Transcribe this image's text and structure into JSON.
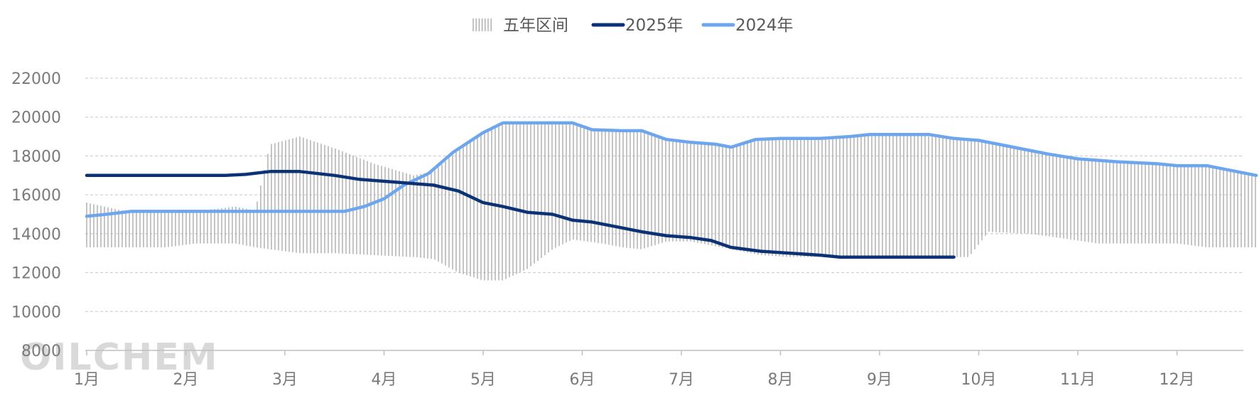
{
  "chart_data": {
    "type": "line",
    "title": "",
    "xlabel": "",
    "ylabel": "",
    "ylim": [
      8000,
      22000
    ],
    "yticks": [
      8000,
      10000,
      12000,
      14000,
      16000,
      18000,
      20000,
      22000
    ],
    "xlim": [
      1,
      12.8
    ],
    "x_categories": [
      "1月",
      "2月",
      "3月",
      "4月",
      "5月",
      "6月",
      "7月",
      "8月",
      "9月",
      "10月",
      "11月",
      "12月"
    ],
    "grid": "horizontal-dashed",
    "legend_position": "top-center",
    "watermark": "OILCHEM",
    "band": {
      "name": "五年区间",
      "color": "#a6a6a6",
      "x": [
        1.0,
        1.4,
        1.8,
        2.1,
        2.5,
        2.7,
        2.85,
        3.15,
        3.5,
        3.9,
        4.3,
        4.5,
        4.75,
        5.0,
        5.2,
        5.45,
        5.7,
        5.9,
        6.2,
        6.4,
        6.6,
        6.85,
        7.1,
        7.5,
        7.8,
        8.1,
        8.4,
        8.8,
        9.3,
        9.7,
        9.9,
        10.1,
        10.5,
        10.8,
        11.2,
        11.6,
        12.0,
        12.3,
        12.6,
        12.8
      ],
      "high": [
        15600,
        15150,
        15150,
        15150,
        15400,
        15200,
        18600,
        19000,
        18400,
        17600,
        17000,
        17200,
        18300,
        19300,
        19700,
        19700,
        19700,
        19700,
        19300,
        19300,
        19300,
        18800,
        18650,
        18500,
        18850,
        18900,
        18900,
        19100,
        19100,
        18900,
        18800,
        18700,
        18300,
        18000,
        17700,
        17600,
        17500,
        17450,
        17200,
        17000
      ],
      "low": [
        13300,
        13300,
        13300,
        13500,
        13500,
        13300,
        13200,
        13000,
        13000,
        12900,
        12800,
        12700,
        12000,
        11600,
        11600,
        12200,
        13200,
        13700,
        13500,
        13300,
        13200,
        13600,
        13600,
        13200,
        12900,
        12800,
        12800,
        12800,
        12800,
        12800,
        12800,
        14100,
        14000,
        13800,
        13500,
        13500,
        13500,
        13300,
        13300,
        13300
      ]
    },
    "series": [
      {
        "name": "2025年",
        "color": "#0b3275",
        "x": [
          1.0,
          1.2,
          1.5,
          1.8,
          2.1,
          2.4,
          2.6,
          2.85,
          3.15,
          3.5,
          3.75,
          4.0,
          4.25,
          4.5,
          4.75,
          5.0,
          5.2,
          5.45,
          5.7,
          5.9,
          6.1,
          6.4,
          6.6,
          6.85,
          7.1,
          7.3,
          7.5,
          7.8,
          8.1,
          8.4,
          8.6,
          8.9,
          9.2,
          9.5,
          9.75
        ],
        "values": [
          17000,
          17000,
          17000,
          17000,
          17000,
          17000,
          17050,
          17200,
          17200,
          17000,
          16800,
          16700,
          16600,
          16500,
          16200,
          15600,
          15400,
          15100,
          15000,
          14700,
          14600,
          14300,
          14100,
          13900,
          13800,
          13650,
          13300,
          13100,
          13000,
          12900,
          12800,
          12800,
          12800,
          12800,
          12800
        ]
      },
      {
        "name": "2024年",
        "color": "#6ea6ee",
        "x": [
          1.0,
          1.2,
          1.45,
          1.8,
          2.1,
          2.4,
          2.7,
          3.0,
          3.3,
          3.6,
          3.8,
          4.0,
          4.2,
          4.45,
          4.7,
          5.0,
          5.2,
          5.5,
          5.8,
          5.9,
          6.1,
          6.4,
          6.6,
          6.85,
          7.1,
          7.35,
          7.5,
          7.75,
          8.0,
          8.4,
          8.7,
          8.9,
          9.2,
          9.5,
          9.75,
          10.0,
          10.4,
          10.7,
          11.0,
          11.4,
          11.8,
          12.0,
          12.3,
          12.5,
          12.8
        ],
        "values": [
          14900,
          15000,
          15150,
          15150,
          15150,
          15150,
          15150,
          15150,
          15150,
          15150,
          15400,
          15800,
          16500,
          17100,
          18200,
          19200,
          19700,
          19700,
          19700,
          19700,
          19350,
          19300,
          19300,
          18850,
          18700,
          18600,
          18450,
          18850,
          18900,
          18900,
          19000,
          19100,
          19100,
          19100,
          18900,
          18800,
          18400,
          18100,
          17850,
          17700,
          17600,
          17500,
          17500,
          17300,
          17000
        ]
      }
    ]
  }
}
